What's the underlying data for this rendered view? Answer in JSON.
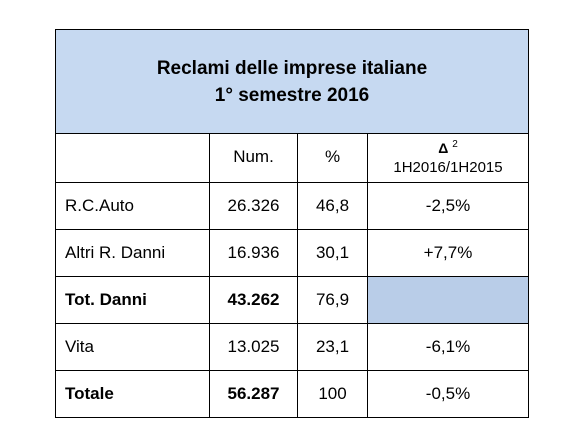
{
  "title": {
    "line1": "Reclami delle imprese italiane",
    "line2": "1° semestre 2016"
  },
  "header": {
    "num": "Num.",
    "pct": "%",
    "delta_symbol": "Δ",
    "delta_superscript": "2",
    "delta_period": "1H2016/1H2015"
  },
  "rows": [
    {
      "label": "R.C.Auto",
      "num": "26.326",
      "pct": "46,8",
      "delta": "-2,5%"
    },
    {
      "label": "Altri R. Danni",
      "num": "16.936",
      "pct": "30,1",
      "delta": "+7,7%"
    },
    {
      "label": "Tot. Danni",
      "num": "43.262",
      "pct": "76,9",
      "delta": ""
    },
    {
      "label": "Vita",
      "num": "13.025",
      "pct": "23,1",
      "delta": "-6,1%"
    },
    {
      "label": "Totale",
      "num": "56.287",
      "pct": "100",
      "delta": "-0,5%"
    }
  ],
  "colors": {
    "title_background": "#c6d9f1",
    "empty_cell_shade": "#b9cde8"
  }
}
